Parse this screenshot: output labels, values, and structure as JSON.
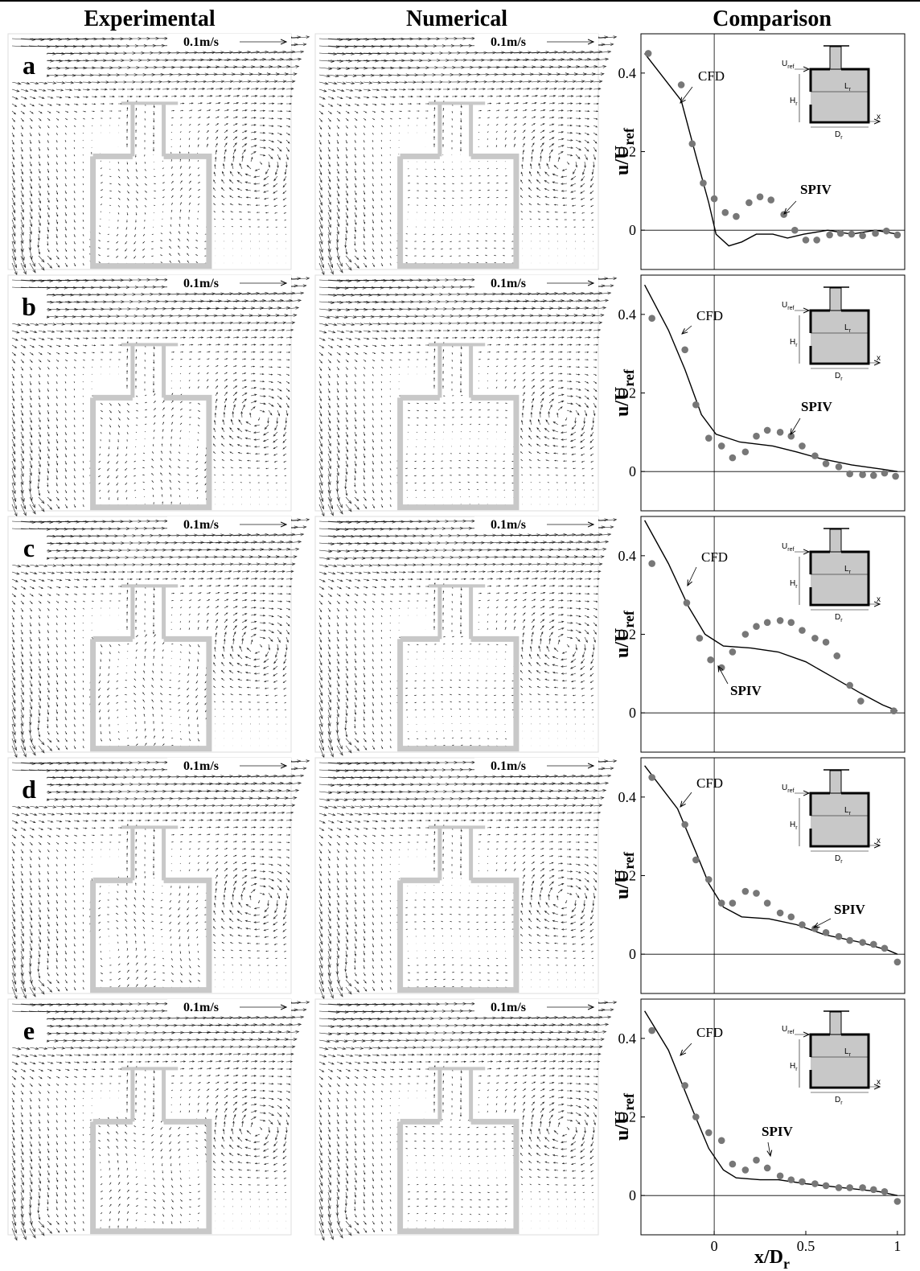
{
  "columns": [
    "Experimental",
    "Numerical",
    "Comparison"
  ],
  "panels": [
    {
      "letter": "a",
      "scale": "0.1m/s"
    },
    {
      "letter": "b",
      "scale": "0.1m/s"
    },
    {
      "letter": "c",
      "scale": "0.1m/s"
    },
    {
      "letter": "d",
      "scale": "0.1m/s"
    },
    {
      "letter": "e",
      "scale": "0.1m/s"
    }
  ],
  "inset": {
    "u": "U",
    "u_sub": "ref",
    "h": "H",
    "h_sub": "r",
    "l": "L",
    "l_sub": "r",
    "d": "D",
    "d_sub": "r",
    "x": "x"
  },
  "chart_data": [
    {
      "type": "line",
      "ylabel": {
        "main": "u/U",
        "sub": "ref"
      },
      "xlim": [
        -0.4,
        1.04
      ],
      "ylim": [
        -0.1,
        0.5
      ],
      "yticks": [
        0,
        0.2,
        0.4
      ],
      "series": [
        {
          "name": "CFD",
          "type": "line",
          "color": "#000000",
          "x": [
            -0.38,
            -0.18,
            -0.1,
            -0.03,
            0.01,
            0.08,
            0.15,
            0.23,
            0.32,
            0.4,
            0.49,
            0.62,
            0.75,
            0.88,
            1.0
          ],
          "values": [
            0.45,
            0.33,
            0.19,
            0.07,
            -0.01,
            -0.04,
            -0.03,
            -0.01,
            -0.01,
            -0.02,
            -0.01,
            0,
            -0.01,
            0,
            -0.01
          ]
        },
        {
          "name": "SPIV",
          "type": "scatter",
          "color": "#777777",
          "x": [
            -0.36,
            -0.18,
            -0.12,
            -0.06,
            0,
            0.06,
            0.12,
            0.19,
            0.25,
            0.31,
            0.38,
            0.44,
            0.5,
            0.56,
            0.63,
            0.69,
            0.75,
            0.81,
            0.88,
            0.94,
            1.0
          ],
          "values": [
            0.45,
            0.37,
            0.22,
            0.12,
            0.08,
            0.045,
            0.035,
            0.07,
            0.085,
            0.077,
            0.04,
            0,
            -0.025,
            -0.025,
            -0.012,
            -0.008,
            -0.01,
            -0.014,
            -0.008,
            -0.002,
            -0.012
          ]
        }
      ]
    },
    {
      "type": "line",
      "ylabel": {
        "main": "u/U",
        "sub": "ref"
      },
      "xlim": [
        -0.4,
        1.04
      ],
      "ylim": [
        -0.1,
        0.5
      ],
      "yticks": [
        0,
        0.2,
        0.4
      ],
      "series": [
        {
          "name": "CFD",
          "type": "line",
          "color": "#000000",
          "x": [
            -0.38,
            -0.25,
            -0.16,
            -0.07,
            0.01,
            0.14,
            0.32,
            0.45,
            0.58,
            0.75,
            0.93,
            1.0
          ],
          "values": [
            0.475,
            0.36,
            0.26,
            0.145,
            0.095,
            0.075,
            0.065,
            0.05,
            0.033,
            0.017,
            0.005,
            0
          ]
        },
        {
          "name": "SPIV",
          "type": "scatter",
          "color": "#777777",
          "x": [
            -0.34,
            -0.16,
            -0.1,
            -0.03,
            0.04,
            0.1,
            0.17,
            0.23,
            0.29,
            0.36,
            0.42,
            0.48,
            0.55,
            0.61,
            0.68,
            0.74,
            0.81,
            0.87,
            0.93,
            0.99
          ],
          "values": [
            0.39,
            0.31,
            0.17,
            0.085,
            0.065,
            0.035,
            0.05,
            0.09,
            0.105,
            0.1,
            0.09,
            0.065,
            0.04,
            0.02,
            0.012,
            -0.006,
            -0.008,
            -0.01,
            -0.004,
            -0.012
          ]
        }
      ]
    },
    {
      "type": "line",
      "ylabel": {
        "main": "u/U",
        "sub": "ref"
      },
      "xlim": [
        -0.4,
        1.04
      ],
      "ylim": [
        -0.1,
        0.5
      ],
      "yticks": [
        0,
        0.2,
        0.4
      ],
      "series": [
        {
          "name": "CFD",
          "type": "line",
          "color": "#000000",
          "x": [
            -0.38,
            -0.25,
            -0.14,
            -0.05,
            0.05,
            0.2,
            0.35,
            0.5,
            0.65,
            0.8,
            0.92,
            1.0
          ],
          "values": [
            0.49,
            0.38,
            0.27,
            0.2,
            0.17,
            0.165,
            0.155,
            0.13,
            0.09,
            0.05,
            0.02,
            0.005
          ]
        },
        {
          "name": "SPIV",
          "type": "scatter",
          "color": "#777777",
          "x": [
            -0.34,
            -0.15,
            -0.08,
            -0.02,
            0.04,
            0.1,
            0.17,
            0.23,
            0.29,
            0.36,
            0.42,
            0.48,
            0.55,
            0.61,
            0.67,
            0.74,
            0.8,
            0.98
          ],
          "values": [
            0.38,
            0.28,
            0.19,
            0.135,
            0.115,
            0.155,
            0.2,
            0.22,
            0.23,
            0.235,
            0.23,
            0.21,
            0.19,
            0.18,
            0.145,
            0.07,
            0.03,
            0.005
          ]
        }
      ]
    },
    {
      "type": "line",
      "ylabel": {
        "main": "u/U",
        "sub": "ref"
      },
      "xlim": [
        -0.4,
        1.04
      ],
      "ylim": [
        -0.1,
        0.5
      ],
      "yticks": [
        0,
        0.2,
        0.4
      ],
      "series": [
        {
          "name": "CFD",
          "type": "line",
          "color": "#000000",
          "x": [
            -0.38,
            -0.2,
            -0.1,
            -0.03,
            0.05,
            0.15,
            0.3,
            0.45,
            0.6,
            0.8,
            0.95,
            1.0
          ],
          "values": [
            0.48,
            0.37,
            0.26,
            0.18,
            0.12,
            0.095,
            0.09,
            0.075,
            0.05,
            0.03,
            0.01,
            0
          ]
        },
        {
          "name": "SPIV",
          "type": "scatter",
          "color": "#777777",
          "x": [
            -0.34,
            -0.16,
            -0.1,
            -0.03,
            0.04,
            0.1,
            0.17,
            0.23,
            0.29,
            0.36,
            0.42,
            0.48,
            0.55,
            0.61,
            0.68,
            0.74,
            0.81,
            0.87,
            0.93,
            1.0
          ],
          "values": [
            0.45,
            0.33,
            0.24,
            0.19,
            0.13,
            0.13,
            0.16,
            0.155,
            0.13,
            0.105,
            0.095,
            0.075,
            0.065,
            0.055,
            0.045,
            0.035,
            0.03,
            0.025,
            0.015,
            -0.02
          ]
        }
      ]
    },
    {
      "type": "line",
      "ylabel": {
        "main": "u/U",
        "sub": "ref"
      },
      "xlabel": {
        "main": "x/D",
        "sub": "r"
      },
      "xlim": [
        -0.4,
        1.04
      ],
      "ylim": [
        -0.1,
        0.5
      ],
      "yticks": [
        0,
        0.2,
        0.4
      ],
      "xticks": [
        0,
        0.5,
        1
      ],
      "series": [
        {
          "name": "CFD",
          "type": "line",
          "color": "#000000",
          "x": [
            -0.38,
            -0.25,
            -0.12,
            -0.03,
            0.05,
            0.12,
            0.25,
            0.35,
            0.5,
            0.7,
            0.9,
            1.0
          ],
          "values": [
            0.47,
            0.37,
            0.22,
            0.12,
            0.065,
            0.045,
            0.04,
            0.04,
            0.03,
            0.02,
            0.01,
            0
          ]
        },
        {
          "name": "SPIV",
          "type": "scatter",
          "color": "#777777",
          "x": [
            -0.34,
            -0.16,
            -0.1,
            -0.03,
            0.04,
            0.1,
            0.17,
            0.23,
            0.29,
            0.36,
            0.42,
            0.48,
            0.55,
            0.61,
            0.68,
            0.74,
            0.81,
            0.87,
            0.93,
            1.0
          ],
          "values": [
            0.42,
            0.28,
            0.2,
            0.16,
            0.14,
            0.08,
            0.065,
            0.09,
            0.07,
            0.05,
            0.04,
            0.035,
            0.03,
            0.025,
            0.02,
            0.02,
            0.02,
            0.015,
            0.01,
            -0.015
          ]
        }
      ]
    }
  ]
}
